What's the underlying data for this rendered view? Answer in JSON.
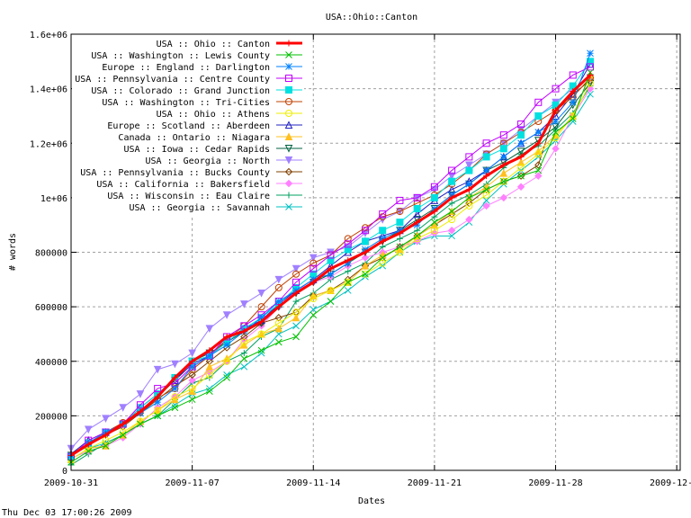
{
  "chart_data": {
    "type": "line",
    "title": "USA::Ohio::Canton",
    "xlabel": "Dates",
    "ylabel": "# words",
    "footer": "Thu Dec 03 17:00:26 2009",
    "xlim_days": [
      0,
      35.2
    ],
    "ylim": [
      0,
      1600000
    ],
    "grid": true,
    "legend_placement": "top-left",
    "x_ticks": [
      {
        "day": 0,
        "label": "2009-10-31"
      },
      {
        "day": 7,
        "label": "2009-11-07"
      },
      {
        "day": 14,
        "label": "2009-11-14"
      },
      {
        "day": 21,
        "label": "2009-11-21"
      },
      {
        "day": 28,
        "label": "2009-11-28"
      },
      {
        "day": 35,
        "label": "2009-12-05"
      }
    ],
    "y_ticks": [
      {
        "value": 0,
        "label": "0"
      },
      {
        "value": 200000,
        "label": "200000"
      },
      {
        "value": 400000,
        "label": "400000"
      },
      {
        "value": 600000,
        "label": "600000"
      },
      {
        "value": 800000,
        "label": "800000"
      },
      {
        "value": 1000000,
        "label": "1e+06"
      },
      {
        "value": 1200000,
        "label": "1.2e+06"
      },
      {
        "value": 1400000,
        "label": "1.4e+06"
      },
      {
        "value": 1600000,
        "label": "1.6e+06"
      }
    ],
    "x_unit": "days since 2009-10-31",
    "y_unit_note": "values in thousands of words",
    "series": [
      {
        "name": "USA :: Ohio :: Canton",
        "color": "#ff0000",
        "marker": "plus",
        "bold": true,
        "values": [
          55,
          95,
          130,
          170,
          215,
          270,
          340,
          400,
          440,
          490,
          510,
          545,
          600,
          650,
          690,
          740,
          770,
          800,
          840,
          870,
          910,
          950,
          1000,
          1030,
          1080,
          1120,
          1150,
          1200,
          1320,
          1390,
          1450
        ]
      },
      {
        "name": "USA :: Washington :: Lewis County",
        "color": "#00c000",
        "marker": "x",
        "values": [
          30,
          70,
          90,
          130,
          170,
          200,
          230,
          260,
          290,
          340,
          410,
          440,
          470,
          490,
          570,
          620,
          690,
          720,
          780,
          820,
          860,
          910,
          950,
          1000,
          1030,
          1060,
          1080,
          1100,
          1240,
          1290,
          1460
        ]
      },
      {
        "name": "Europe :: England :: Darlington",
        "color": "#0080ff",
        "marker": "star",
        "values": [
          55,
          100,
          140,
          170,
          210,
          250,
          300,
          380,
          420,
          460,
          510,
          560,
          620,
          660,
          700,
          720,
          760,
          810,
          850,
          880,
          900,
          960,
          1010,
          1050,
          1100,
          1150,
          1200,
          1240,
          1280,
          1350,
          1530
        ]
      },
      {
        "name": "USA :: Pennsylvania :: Centre County",
        "color": "#c000ff",
        "marker": "square",
        "values": [
          50,
          110,
          140,
          170,
          240,
          300,
          320,
          380,
          420,
          490,
          530,
          570,
          620,
          690,
          740,
          790,
          830,
          880,
          940,
          990,
          1000,
          1040,
          1100,
          1150,
          1200,
          1230,
          1270,
          1350,
          1400,
          1450,
          1480
        ]
      },
      {
        "name": "USA :: Colorado :: Grand Junction",
        "color": "#00e0e0",
        "marker": "fsquare",
        "values": [
          50,
          100,
          140,
          170,
          230,
          280,
          340,
          400,
          420,
          470,
          520,
          560,
          610,
          670,
          720,
          770,
          810,
          840,
          880,
          910,
          960,
          1000,
          1060,
          1100,
          1150,
          1180,
          1230,
          1300,
          1340,
          1410,
          1500
        ]
      },
      {
        "name": "USA :: Washington :: Tri-Cities",
        "color": "#c04000",
        "marker": "circle",
        "values": [
          55,
          100,
          140,
          175,
          220,
          265,
          300,
          370,
          420,
          480,
          530,
          600,
          670,
          720,
          760,
          790,
          850,
          890,
          930,
          950,
          980,
          1010,
          1050,
          1100,
          1160,
          1200,
          1240,
          1280,
          1320,
          1370,
          1440
        ]
      },
      {
        "name": "USA :: Ohio :: Athens",
        "color": "#eeee00",
        "marker": "circle",
        "values": [
          40,
          80,
          110,
          140,
          180,
          220,
          270,
          300,
          350,
          400,
          470,
          500,
          540,
          580,
          630,
          660,
          690,
          720,
          760,
          800,
          850,
          880,
          920,
          970,
          1010,
          1060,
          1110,
          1160,
          1220,
          1300,
          1420
        ]
      },
      {
        "name": "Europe :: Scotland :: Aberdeen",
        "color": "#2020c0",
        "marker": "triangle",
        "values": [
          60,
          110,
          140,
          170,
          230,
          280,
          330,
          390,
          420,
          480,
          520,
          550,
          610,
          660,
          700,
          750,
          800,
          840,
          860,
          880,
          940,
          990,
          1030,
          1060,
          1100,
          1150,
          1200,
          1240,
          1300,
          1380,
          1490
        ]
      },
      {
        "name": "Canada :: Ontario :: Niagara",
        "color": "#ffc020",
        "marker": "ftriangle",
        "values": [
          40,
          80,
          90,
          130,
          180,
          220,
          260,
          290,
          380,
          410,
          460,
          500,
          520,
          560,
          640,
          660,
          690,
          750,
          790,
          810,
          860,
          900,
          950,
          1000,
          1040,
          1090,
          1130,
          1170,
          1230,
          1300,
          1450
        ]
      },
      {
        "name": "USA :: Iowa :: Cedar Rapids",
        "color": "#006040",
        "marker": "dtriangle",
        "values": [
          55,
          100,
          140,
          170,
          220,
          270,
          330,
          400,
          430,
          470,
          510,
          540,
          600,
          650,
          690,
          720,
          760,
          800,
          840,
          880,
          920,
          960,
          1010,
          1050,
          1100,
          1130,
          1170,
          1210,
          1260,
          1340,
          1420
        ]
      },
      {
        "name": "USA :: Georgia :: North",
        "color": "#a080ff",
        "marker": "fdtriangle",
        "values": [
          80,
          150,
          190,
          230,
          280,
          370,
          390,
          430,
          520,
          570,
          610,
          650,
          700,
          740,
          780,
          800,
          820,
          870,
          920,
          950,
          1000,
          1030,
          1080,
          1120,
          1160,
          1200,
          1250,
          1300,
          1350,
          1400,
          1440
        ]
      },
      {
        "name": "USA :: Pennsylvania :: Bucks County",
        "color": "#804000",
        "marker": "diamond",
        "values": [
          55,
          100,
          130,
          160,
          210,
          260,
          310,
          350,
          400,
          450,
          490,
          540,
          560,
          580,
          640,
          660,
          700,
          750,
          780,
          820,
          860,
          900,
          940,
          980,
          1030,
          1060,
          1080,
          1120,
          1320,
          1380,
          1430
        ]
      },
      {
        "name": "USA :: California :: Bakersfield",
        "color": "#ff80ff",
        "marker": "fdiamond",
        "values": [
          45,
          70,
          90,
          120,
          170,
          230,
          270,
          330,
          360,
          400,
          480,
          530,
          600,
          660,
          690,
          710,
          750,
          780,
          800,
          820,
          840,
          870,
          880,
          920,
          970,
          1000,
          1040,
          1080,
          1180,
          1300,
          1400
        ]
      },
      {
        "name": "USA :: Wisconsin :: Eau Claire",
        "color": "#00a060",
        "marker": "plus",
        "values": [
          20,
          60,
          100,
          130,
          170,
          200,
          260,
          320,
          340,
          400,
          430,
          490,
          520,
          620,
          650,
          700,
          730,
          760,
          820,
          850,
          880,
          930,
          980,
          1010,
          1050,
          1110,
          1160,
          1190,
          1250,
          1310,
          1410
        ]
      },
      {
        "name": "USA :: Georgia :: Savannah",
        "color": "#00c0c0",
        "marker": "x",
        "values": [
          40,
          80,
          100,
          130,
          170,
          200,
          240,
          280,
          300,
          350,
          380,
          430,
          500,
          530,
          590,
          620,
          660,
          710,
          750,
          800,
          840,
          860,
          860,
          910,
          990,
          1050,
          1100,
          1150,
          1210,
          1280,
          1380
        ]
      }
    ]
  }
}
